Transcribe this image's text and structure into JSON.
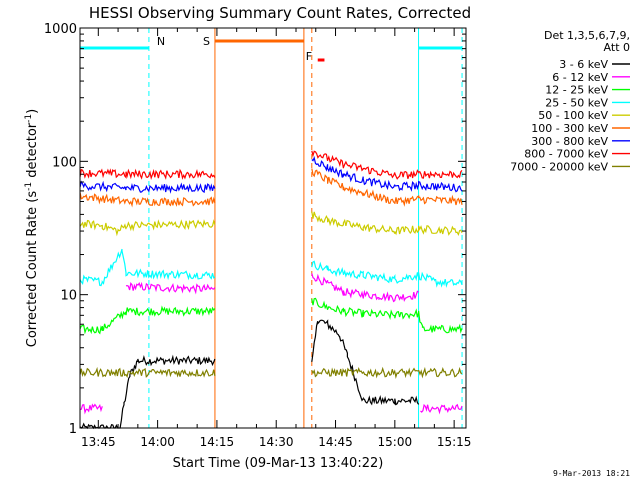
{
  "chart_data": {
    "type": "line",
    "title": "HESSI Observing Summary Count Rates, Corrected",
    "xlabel": "Start Time (09-Mar-13 13:40:22)",
    "ylabel": "Corrected Count Rate (s",
    "ylabel_sup1": "-1",
    "ylabel_mid": " detector",
    "ylabel_sup2": "-1",
    "ylabel_end": ")",
    "x_unit": "minutes since 13:00 UT",
    "xlim": [
      100.37,
      198.0
    ],
    "ylim": [
      1,
      1000
    ],
    "yscale": "log",
    "x_ticks": [
      {
        "t": 105,
        "label": "13:45"
      },
      {
        "t": 120,
        "label": "14:00"
      },
      {
        "t": 135,
        "label": "14:15"
      },
      {
        "t": 150,
        "label": "14:30"
      },
      {
        "t": 165,
        "label": "14:45"
      },
      {
        "t": 180,
        "label": "15:00"
      },
      {
        "t": 195,
        "label": "15:15"
      }
    ],
    "y_ticks": [
      {
        "v": 1,
        "label": "1"
      },
      {
        "v": 10,
        "label": "10"
      },
      {
        "v": 100,
        "label": "100"
      },
      {
        "v": 1000,
        "label": "1000"
      }
    ],
    "legend": {
      "placement": "right",
      "header1": "Det 1,3,5,6,7,9,",
      "header2": "Att 0"
    },
    "series": [
      {
        "name": "3 - 6 keV",
        "color": "#000000",
        "segments": [
          [
            [
              100.4,
              1.0
            ],
            [
              110.5,
              1.0
            ],
            [
              111.5,
              1.5
            ],
            [
              113.0,
              2.5
            ],
            [
              115.0,
              3.2
            ],
            [
              134.5,
              3.2
            ]
          ],
          [
            [
              159.0,
              3.0
            ],
            [
              160.5,
              6.5
            ],
            [
              163.0,
              6.0
            ],
            [
              166.0,
              5.0
            ],
            [
              168.0,
              3.5
            ],
            [
              172.0,
              1.6
            ],
            [
              180.0,
              1.6
            ],
            [
              186.0,
              1.6
            ]
          ]
        ]
      },
      {
        "name": "6 - 12 keV",
        "color": "#ff00ff",
        "segments": [
          [
            [
              100.4,
              1.4
            ],
            [
              106.0,
              1.4
            ]
          ],
          [
            [
              112.0,
              11.5
            ],
            [
              134.5,
              11.0
            ]
          ],
          [
            [
              159.0,
              14.0
            ],
            [
              163.0,
              12.0
            ],
            [
              167.0,
              10.5
            ],
            [
              172.0,
              10.0
            ],
            [
              176.0,
              9.8
            ],
            [
              180.0,
              9.5
            ],
            [
              186.0,
              10.0
            ]
          ],
          [
            [
              186.5,
              1.4
            ],
            [
              197.0,
              1.4
            ]
          ]
        ]
      },
      {
        "name": "12 - 25 keV",
        "color": "#00ff00",
        "segments": [
          [
            [
              100.4,
              5.5
            ],
            [
              106.0,
              5.5
            ],
            [
              112.0,
              7.5
            ],
            [
              134.5,
              7.5
            ]
          ],
          [
            [
              159.0,
              9.0
            ],
            [
              163.0,
              8.0
            ],
            [
              167.0,
              7.5
            ],
            [
              172.0,
              7.2
            ],
            [
              180.0,
              7.0
            ],
            [
              186.0,
              7.2
            ],
            [
              187.0,
              5.5
            ],
            [
              197.0,
              5.5
            ]
          ]
        ]
      },
      {
        "name": "25 - 50 keV",
        "color": "#00ffff",
        "segments": [
          [
            [
              100.4,
              13.0
            ],
            [
              106.0,
              12.5
            ],
            [
              111.0,
              22.0
            ],
            [
              112.0,
              14.5
            ],
            [
              134.5,
              14.0
            ]
          ],
          [
            [
              159.0,
              17.0
            ],
            [
              163.0,
              15.5
            ],
            [
              167.0,
              14.5
            ],
            [
              172.0,
              14.0
            ],
            [
              180.0,
              13.0
            ],
            [
              186.0,
              14.0
            ],
            [
              190.0,
              12.5
            ],
            [
              197.0,
              12.0
            ]
          ]
        ]
      },
      {
        "name": "50 - 100 keV",
        "color": "#cccc00",
        "segments": [
          [
            [
              100.4,
              34.0
            ],
            [
              106.0,
              33.0
            ],
            [
              110.0,
              30.0
            ],
            [
              112.0,
              33.0
            ],
            [
              134.5,
              34.0
            ]
          ],
          [
            [
              159.0,
              40.0
            ],
            [
              163.0,
              36.0
            ],
            [
              167.0,
              34.0
            ],
            [
              172.0,
              32.0
            ],
            [
              180.0,
              30.0
            ],
            [
              186.0,
              31.0
            ],
            [
              197.0,
              30.0
            ]
          ]
        ]
      },
      {
        "name": "100 - 300 keV",
        "color": "#ff6600",
        "segments": [
          [
            [
              100.4,
              55.0
            ],
            [
              112.0,
              50.0
            ],
            [
              134.5,
              50.0
            ]
          ],
          [
            [
              159.0,
              85.0
            ],
            [
              163.0,
              72.0
            ],
            [
              167.0,
              64.0
            ],
            [
              172.0,
              58.0
            ],
            [
              180.0,
              50.0
            ],
            [
              186.0,
              52.0
            ],
            [
              197.0,
              50.0
            ]
          ]
        ]
      },
      {
        "name": "300 - 800 keV",
        "color": "#0000ff",
        "segments": [
          [
            [
              100.4,
              66.0
            ],
            [
              112.0,
              63.0
            ],
            [
              134.5,
              63.0
            ]
          ],
          [
            [
              159.0,
              105.0
            ],
            [
              163.0,
              90.0
            ],
            [
              167.0,
              80.0
            ],
            [
              172.0,
              72.0
            ],
            [
              180.0,
              64.0
            ],
            [
              186.0,
              66.0
            ],
            [
              197.0,
              63.0
            ]
          ]
        ]
      },
      {
        "name": "800 - 7000 keV",
        "color": "#ff0000",
        "segments": [
          [
            [
              100.4,
              82.0
            ],
            [
              112.0,
              80.0
            ],
            [
              134.5,
              80.0
            ]
          ],
          [
            [
              159.0,
              120.0
            ],
            [
              163.0,
              105.0
            ],
            [
              167.0,
              95.0
            ],
            [
              172.0,
              88.0
            ],
            [
              180.0,
              78.0
            ],
            [
              186.0,
              80.0
            ],
            [
              197.0,
              80.0
            ]
          ]
        ]
      },
      {
        "name": "7000 - 20000 keV",
        "color": "#808000",
        "segments": [
          [
            [
              100.4,
              2.6
            ],
            [
              134.5,
              2.6
            ]
          ],
          [
            [
              159.0,
              2.6
            ],
            [
              197.0,
              2.6
            ]
          ]
        ]
      }
    ],
    "annotations": [
      {
        "text": "N",
        "t": 117.8,
        "color": "#00ffff"
      },
      {
        "text": "S",
        "t": 134.5,
        "color": "#ff6600"
      },
      {
        "text": "F",
        "t": 159.0,
        "color": "#ff6600"
      }
    ],
    "flags": [
      {
        "name": "night",
        "color": "#00ffff",
        "t_start": 100.4,
        "t_end": 117.8
      },
      {
        "name": "night",
        "color": "#00ffff",
        "t_start": 186.0,
        "t_end": 197.0
      },
      {
        "name": "saa",
        "color": "#ff6600",
        "t_start": 134.5,
        "t_end": 157.0
      },
      {
        "name": "flare",
        "color": "#ff0000",
        "t_start": 160.5,
        "t_end": 162.2
      }
    ],
    "vlines": [
      {
        "t": 117.8,
        "color": "#00ffff",
        "dash": true
      },
      {
        "t": 134.5,
        "color": "#ff6600",
        "dash": false
      },
      {
        "t": 157.0,
        "color": "#ff6600",
        "dash": false
      },
      {
        "t": 159.0,
        "color": "#ff6600",
        "dash": true
      },
      {
        "t": 186.0,
        "color": "#00ffff",
        "dash": false
      },
      {
        "t": 197.0,
        "color": "#00ffff",
        "dash": true
      }
    ],
    "timestamp": "9-Mar-2013 18:21"
  }
}
